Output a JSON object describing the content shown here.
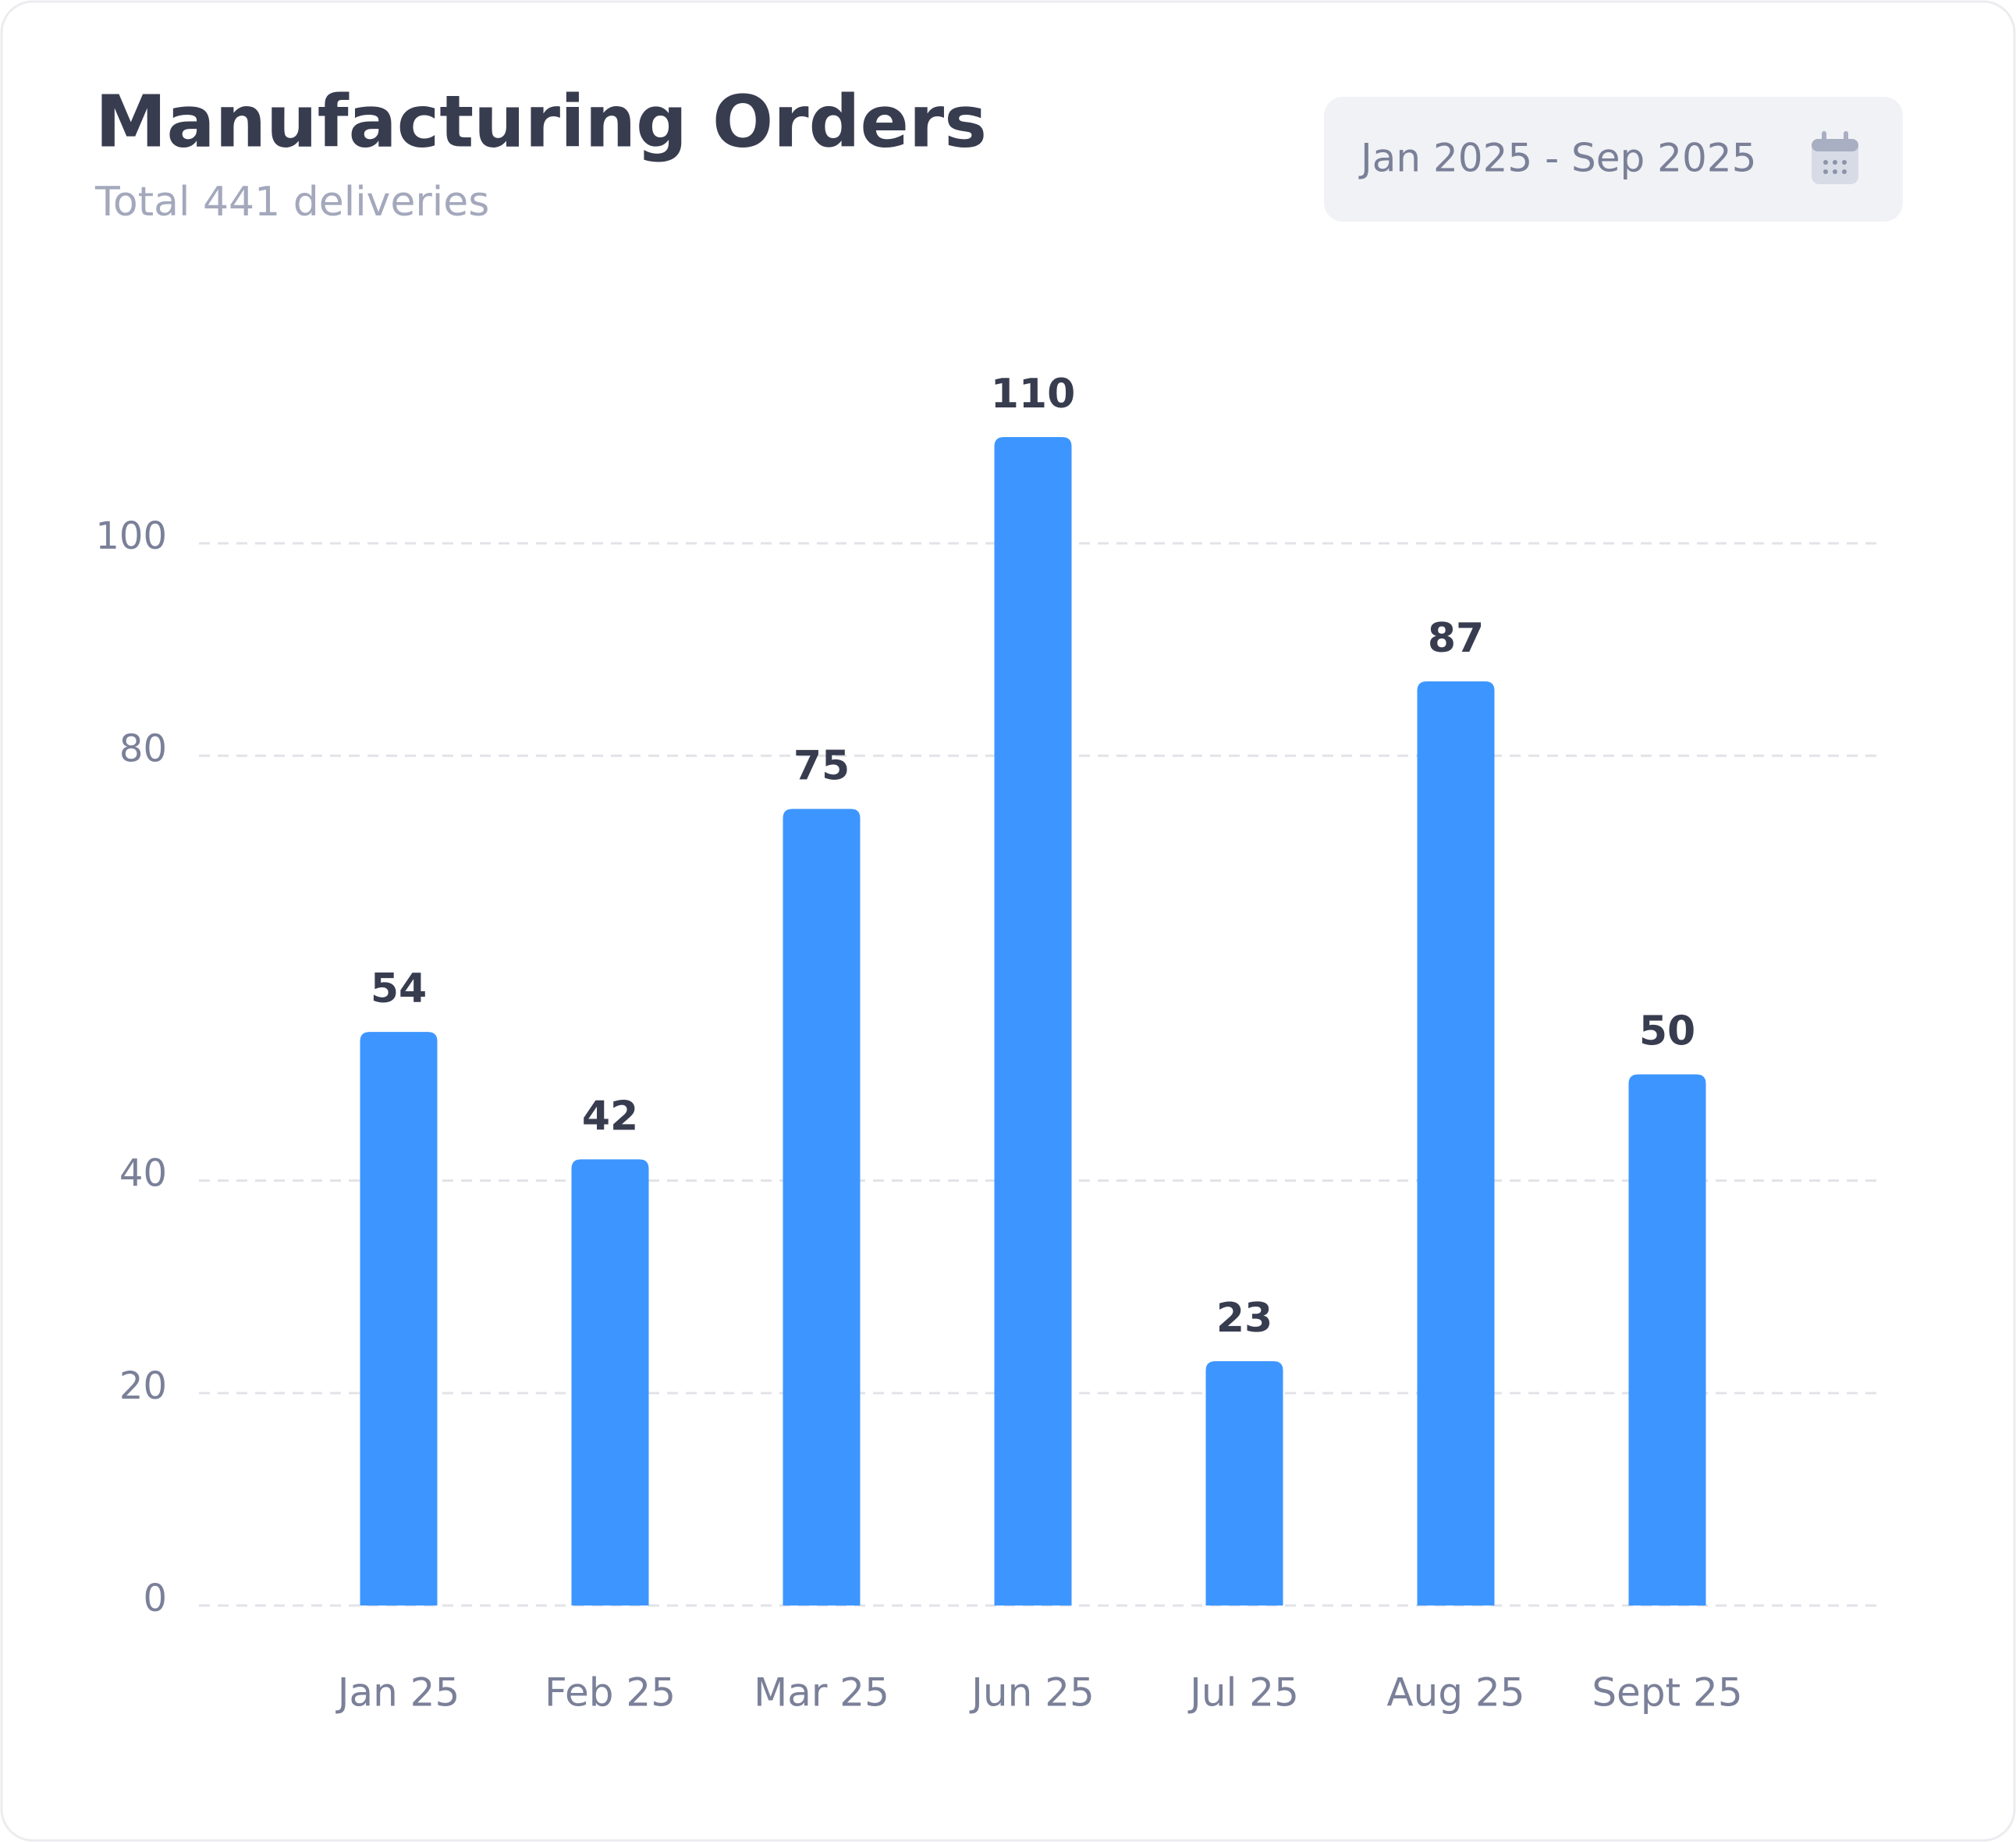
{
  "chart_data": {
    "type": "bar",
    "title": "Manufacturing Orders",
    "subtitle": "Total 441 deliveries",
    "date_range": "Jan 2025 - Sep 2025",
    "categories": [
      "Jan 25",
      "Feb 25",
      "Mar 25",
      "Jun 25",
      "Jul 25",
      "Aug 25",
      "Sept 25"
    ],
    "values": [
      54,
      42,
      75,
      110,
      23,
      87,
      50
    ],
    "color": "#3d96ff",
    "ylim": [
      0,
      110
    ],
    "yticks": [
      0,
      20,
      40,
      80,
      100
    ],
    "grid": true
  }
}
